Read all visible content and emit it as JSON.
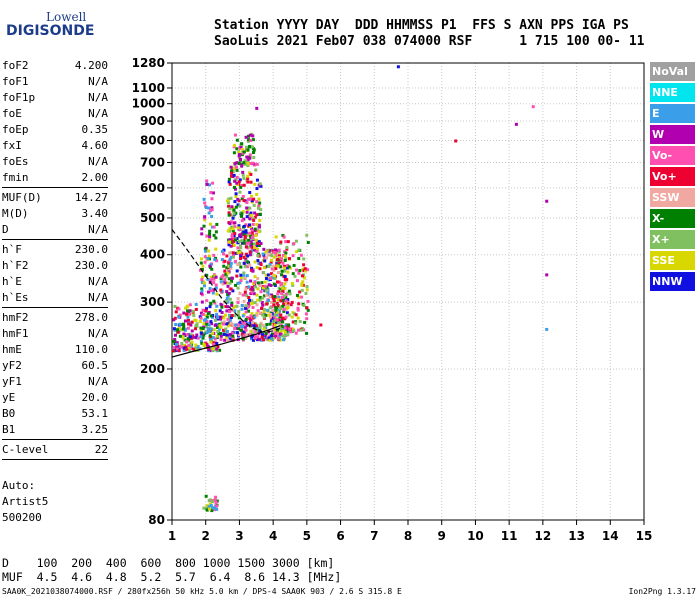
{
  "logo": {
    "top": "Lowell",
    "bottom": "DIGISONDE"
  },
  "header": {
    "line1": "Station YYYY DAY  DDD HHMMSS P1  FFS S AXN PPS IGA PS",
    "line2": "SaoLuis 2021 Feb07 038 074000 RSF      1 715 100 00- 11"
  },
  "params": [
    {
      "label": "foF2",
      "value": "4.200",
      "sep": false
    },
    {
      "label": "foF1",
      "value": "N/A",
      "sep": false
    },
    {
      "label": "foF1p",
      "value": "N/A",
      "sep": false
    },
    {
      "label": "foE",
      "value": "N/A",
      "sep": false
    },
    {
      "label": "foEp",
      "value": "0.35",
      "sep": false
    },
    {
      "label": "fxI",
      "value": "4.60",
      "sep": false
    },
    {
      "label": "foEs",
      "value": "N/A",
      "sep": false
    },
    {
      "label": "fmin",
      "value": "2.00",
      "sep": true
    },
    {
      "label": "MUF(D)",
      "value": "14.27",
      "sep": false
    },
    {
      "label": "M(D)",
      "value": "3.40",
      "sep": false
    },
    {
      "label": "D",
      "value": "N/A",
      "sep": true
    },
    {
      "label": "h`F",
      "value": "230.0",
      "sep": false
    },
    {
      "label": "h`F2",
      "value": "230.0",
      "sep": false
    },
    {
      "label": "h`E",
      "value": "N/A",
      "sep": false
    },
    {
      "label": "h`Es",
      "value": "N/A",
      "sep": true
    },
    {
      "label": "hmF2",
      "value": "278.0",
      "sep": false
    },
    {
      "label": "hmF1",
      "value": "N/A",
      "sep": false
    },
    {
      "label": "hmE",
      "value": "110.0",
      "sep": false
    },
    {
      "label": "yF2",
      "value": "60.5",
      "sep": false
    },
    {
      "label": "yF1",
      "value": "N/A",
      "sep": false
    },
    {
      "label": "yE",
      "value": "20.0",
      "sep": false
    },
    {
      "label": "B0",
      "value": "53.1",
      "sep": false
    },
    {
      "label": "B1",
      "value": "3.25",
      "sep": true
    },
    {
      "label": "C-level",
      "value": "22",
      "sep": true
    }
  ],
  "auto": {
    "line1": "Auto:",
    "line2": "Artist5",
    "line3": "500200"
  },
  "mufd": {
    "row1": "D    100  200  400  600  800 1000 1500 3000 [km]",
    "row2": "MUF  4.5  4.6  4.8  5.2  5.7  6.4  8.6 14.3 [MHz]"
  },
  "footer": {
    "left": "SAA0K_2021038074000.RSF / 280fx256h 50 kHz 5.0 km / DPS-4 SAA0K 903 / 2.6 S 315.8 E",
    "right": "Ion2Png 1.3.17"
  },
  "legend": [
    {
      "label": "NoVal",
      "color": "#a0a0a0"
    },
    {
      "label": "NNE",
      "color": "#00e5ee"
    },
    {
      "label": "E",
      "color": "#3a9ee8"
    },
    {
      "label": "W",
      "color": "#b000b0"
    },
    {
      "label": "Vo-",
      "color": "#ff4fb0"
    },
    {
      "label": "Vo+",
      "color": "#ee0030"
    },
    {
      "label": "SSW",
      "color": "#f0a8a0"
    },
    {
      "label": "X-",
      "color": "#008000"
    },
    {
      "label": "X+",
      "color": "#80c060"
    },
    {
      "label": "SSE",
      "color": "#d8d800"
    },
    {
      "label": "NNW",
      "color": "#1010e0"
    }
  ],
  "chart_data": {
    "type": "scatter",
    "xlim": [
      1,
      15
    ],
    "ylim": [
      80,
      1280
    ],
    "x_ticks": [
      "1",
      "2",
      "3",
      "4",
      "5",
      "6",
      "7",
      "8",
      "9",
      "10",
      "11",
      "12",
      "13",
      "14",
      "15"
    ],
    "y_ticks": [
      {
        "v": 80,
        "label": "80"
      },
      {
        "v": 200,
        "label": "200"
      },
      {
        "v": 300,
        "label": "300"
      },
      {
        "v": 400,
        "label": "400"
      },
      {
        "v": 500,
        "label": "500"
      },
      {
        "v": 600,
        "label": "600"
      },
      {
        "v": 700,
        "label": "700"
      },
      {
        "v": 800,
        "label": "800"
      },
      {
        "v": 900,
        "label": "900"
      },
      {
        "v": 1000,
        "label": "1000"
      },
      {
        "v": 1100,
        "label": "1100"
      },
      {
        "v": 1280,
        "label": "1280"
      }
    ],
    "grid": true,
    "scale": "log",
    "profile_solid": [
      [
        1,
        215
      ],
      [
        1.5,
        221
      ],
      [
        2,
        227
      ],
      [
        2.5,
        233
      ],
      [
        3,
        240
      ],
      [
        3.5,
        247
      ],
      [
        4,
        256
      ],
      [
        4.2,
        260
      ]
    ],
    "profile_dashed": [
      [
        1,
        466
      ],
      [
        1.3,
        430
      ],
      [
        1.6,
        395
      ],
      [
        1.9,
        362
      ],
      [
        2.2,
        332
      ],
      [
        2.5,
        305
      ],
      [
        2.8,
        285
      ],
      [
        3.1,
        268
      ],
      [
        3.4,
        256
      ],
      [
        3.7,
        250
      ],
      [
        4.0,
        252
      ],
      [
        4.2,
        256
      ]
    ],
    "isolated_points": [
      {
        "x": 7.7,
        "y": 1255,
        "c": "#1010e0"
      },
      {
        "x": 11.7,
        "y": 985,
        "c": "#ff4fb0"
      },
      {
        "x": 11.2,
        "y": 885,
        "c": "#b000b0"
      },
      {
        "x": 9.4,
        "y": 800,
        "c": "#ee0030"
      },
      {
        "x": 12.1,
        "y": 555,
        "c": "#b000b0"
      },
      {
        "x": 12.1,
        "y": 355,
        "c": "#b000b0"
      },
      {
        "x": 12.1,
        "y": 255,
        "c": "#3a9ee8"
      },
      {
        "x": 3.5,
        "y": 975,
        "c": "#b000b0"
      },
      {
        "x": 5.4,
        "y": 262,
        "c": "#ee0030"
      }
    ],
    "clusters": [
      {
        "x": [
          1.9,
          2.3
        ],
        "y": [
          85,
          95
        ],
        "n": 30,
        "colors": [
          "#ff4fb0",
          "#80c060",
          "#3a9ee8",
          "#008000",
          "#d8d800"
        ]
      },
      {
        "x": [
          1.0,
          2.4
        ],
        "y": [
          225,
          300
        ],
        "n": 260,
        "colors": [
          "#ee0030",
          "#ff4fb0",
          "#b000b0",
          "#008000",
          "#80c060",
          "#d8d800",
          "#1010e0",
          "#3a9ee8"
        ]
      },
      {
        "x": [
          1.8,
          2.3
        ],
        "y": [
          300,
          500
        ],
        "n": 80,
        "colors": [
          "#ff4fb0",
          "#b000b0",
          "#008000",
          "#d8d800",
          "#3a9ee8"
        ]
      },
      {
        "x": [
          1.9,
          2.2
        ],
        "y": [
          500,
          640
        ],
        "n": 20,
        "colors": [
          "#ff4fb0",
          "#b000b0",
          "#3a9ee8"
        ]
      },
      {
        "x": [
          2.4,
          4.4
        ],
        "y": [
          240,
          420
        ],
        "n": 650,
        "colors": [
          "#ee0030",
          "#ff4fb0",
          "#b000b0",
          "#008000",
          "#80c060",
          "#d8d800",
          "#1010e0",
          "#3a9ee8",
          "#f0a8a0"
        ]
      },
      {
        "x": [
          2.6,
          3.6
        ],
        "y": [
          420,
          700
        ],
        "n": 260,
        "colors": [
          "#b000b0",
          "#ff4fb0",
          "#ee0030",
          "#008000",
          "#d8d800",
          "#1010e0",
          "#80c060"
        ]
      },
      {
        "x": [
          2.8,
          3.4
        ],
        "y": [
          700,
          850
        ],
        "n": 70,
        "colors": [
          "#b000b0",
          "#ff4fb0",
          "#d8d800",
          "#80c060",
          "#008000"
        ]
      },
      {
        "x": [
          4.0,
          5.0
        ],
        "y": [
          250,
          460
        ],
        "n": 160,
        "colors": [
          "#d8d800",
          "#80c060",
          "#ff4fb0",
          "#ee0030",
          "#008000"
        ]
      }
    ]
  }
}
